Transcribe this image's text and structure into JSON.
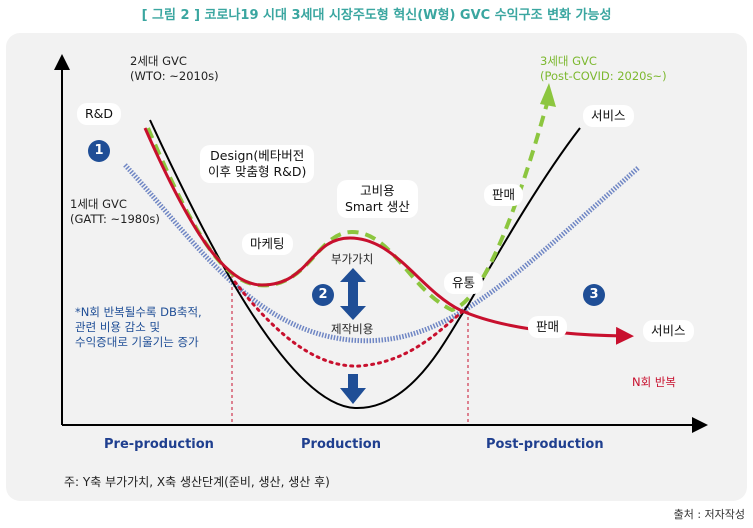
{
  "figure": {
    "title": "[ 그림 2 ] 코로나19 시대 3세대 시장주도형 혁신(W형) GVC 수익구조 변화 가능성",
    "source": "출처 : 저자작성",
    "footnote": "주: Y축 부가가치, X축 생산단계(준비, 생산, 생산 후)"
  },
  "labels": {
    "gvc2_line1": "2세대 GVC",
    "gvc2_line2": "(WTO: ~2010s)",
    "gvc3_line1": "3세대 GVC",
    "gvc3_line2": "(Post-COVID: 2020s~)",
    "gvc1_line1": "1세대 GVC",
    "gvc1_line2": "(GATT: ~1980s)",
    "rnd": "R&D",
    "design_line1": "Design(베타버전",
    "design_line2": "이후 맞춤형 R&D)",
    "smart_line1": "고비용",
    "smart_line2": "Smart 생산",
    "marketing": "마케팅",
    "sales_top": "판매",
    "service_top": "서비스",
    "distribution": "유통",
    "sales_right": "판매",
    "service_right": "서비스",
    "value_added": "부가가치",
    "production_cost": "제작비용",
    "n_repeat": "N회 반복",
    "note_line1": "*N회 반복될수록 DB축적,",
    "note_line2": "관련 비용 감소 및",
    "note_line3": "수익증대로 기울기는 증가",
    "num1": "1",
    "num2": "2",
    "num3": "3"
  },
  "phases": [
    "Pre-production",
    "Production",
    "Post-production"
  ],
  "colors": {
    "title": "#3aa6a0",
    "red": "#c8102e",
    "green": "#8cc63f",
    "blue_dark": "#1f4e96",
    "blue_light": "#6f86c4",
    "phase": "#1f3f8f"
  }
}
